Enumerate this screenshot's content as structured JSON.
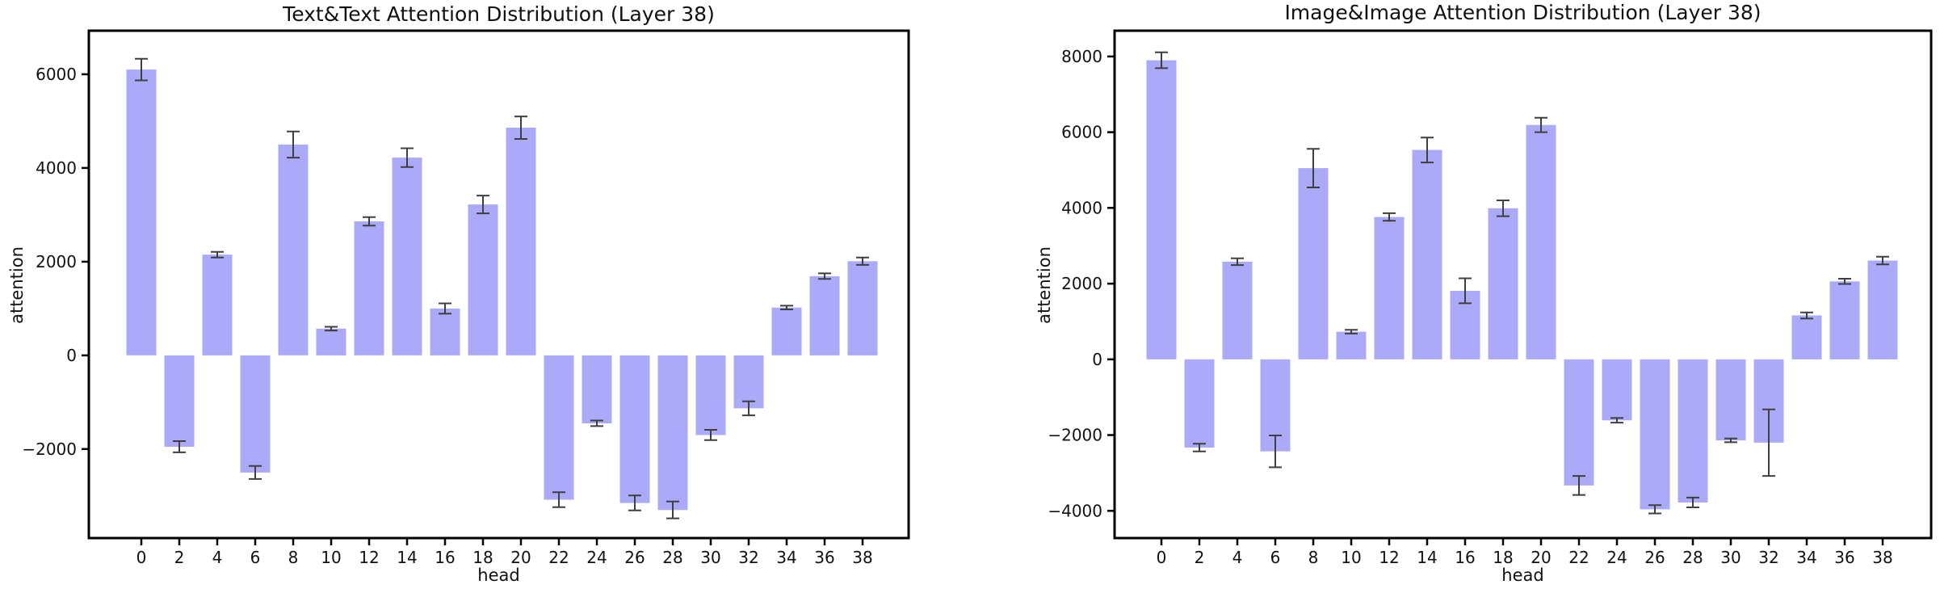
{
  "background": "#ffffff",
  "chart_data": [
    {
      "type": "bar",
      "title": "Text&Text Attention Distribution (Layer 38)",
      "xlabel": "head",
      "ylabel": "attention",
      "categories": [
        0,
        2,
        4,
        6,
        8,
        10,
        12,
        14,
        16,
        18,
        20,
        22,
        24,
        26,
        28,
        30,
        32,
        34,
        36,
        38
      ],
      "values": [
        6100,
        -1950,
        2150,
        -2500,
        4500,
        570,
        2860,
        4220,
        1000,
        3220,
        4860,
        -3080,
        -1450,
        -3150,
        -3300,
        -1700,
        -1130,
        1020,
        1690,
        2010
      ],
      "errors": [
        230,
        120,
        60,
        140,
        280,
        40,
        90,
        200,
        110,
        190,
        240,
        160,
        60,
        160,
        180,
        110,
        150,
        40,
        60,
        80
      ],
      "yticks": [
        6000,
        4000,
        2000,
        0,
        -2000
      ],
      "ylim": [
        -3900,
        6930
      ],
      "grid": false,
      "legend": "none",
      "bar_color": "#aaaaf9",
      "error_color": "#3f3f3f",
      "axis_color": "#000000"
    },
    {
      "type": "bar",
      "title": "Image&Image Attention Distribution (Layer 38)",
      "xlabel": "head",
      "ylabel": "attention",
      "categories": [
        0,
        2,
        4,
        6,
        8,
        10,
        12,
        14,
        16,
        18,
        20,
        22,
        24,
        26,
        28,
        30,
        32,
        34,
        36,
        38
      ],
      "values": [
        7900,
        -2330,
        2580,
        -2430,
        5050,
        730,
        3760,
        5530,
        1810,
        3990,
        6190,
        -3330,
        -1610,
        -3960,
        -3780,
        -2140,
        -2200,
        1160,
        2060,
        2610
      ],
      "errors": [
        210,
        100,
        90,
        420,
        510,
        50,
        100,
        330,
        330,
        210,
        190,
        250,
        60,
        110,
        130,
        50,
        880,
        80,
        70,
        100
      ],
      "yticks": [
        8000,
        6000,
        4000,
        2000,
        0,
        -2000,
        -4000
      ],
      "ylim": [
        -4720,
        8680
      ],
      "grid": false,
      "legend": "none",
      "bar_color": "#aaaaf9",
      "error_color": "#3f3f3f",
      "axis_color": "#000000"
    }
  ]
}
